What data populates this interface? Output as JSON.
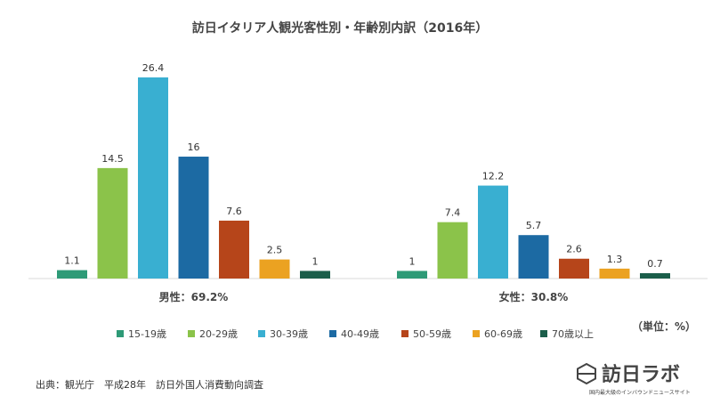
{
  "chart_data": {
    "type": "bar",
    "title": "訪日イタリア人観光客性別・年齢別内訳（2016年）",
    "unit_label": "（単位：%）",
    "categories": [
      "男性：69.2%",
      "女性：30.8%"
    ],
    "series": [
      {
        "name": "15-19歳",
        "color": "#2e9a77",
        "values": [
          1.1,
          1
        ]
      },
      {
        "name": "20-29歳",
        "color": "#8bc34a",
        "values": [
          14.5,
          7.4
        ]
      },
      {
        "name": "30-39歳",
        "color": "#39afd1",
        "values": [
          26.4,
          12.2
        ]
      },
      {
        "name": "40-49歳",
        "color": "#1c6aa3",
        "values": [
          16,
          5.7
        ]
      },
      {
        "name": "50-59歳",
        "color": "#b6451a",
        "values": [
          7.6,
          2.6
        ]
      },
      {
        "name": "60-69歳",
        "color": "#eba221",
        "values": [
          2.5,
          1.3
        ]
      },
      {
        "name": "70歳以上",
        "color": "#1b5e4a",
        "values": [
          1,
          0.7
        ]
      }
    ],
    "value_labels": [
      [
        "1.1",
        "1"
      ],
      [
        "14.5",
        "7.4"
      ],
      [
        "26.4",
        "12.2"
      ],
      [
        "16",
        "5.7"
      ],
      [
        "7.6",
        "2.6"
      ],
      [
        "2.5",
        "1.3"
      ],
      [
        "1",
        "0.7"
      ]
    ],
    "legend_position": "bottom",
    "grid": false
  },
  "source": "出典：観光庁　平成28年　訪日外国人消費動向調査",
  "logo": {
    "name": "訪日ラボ",
    "tagline": "国内最大級のインバウンドニュースサイト"
  }
}
